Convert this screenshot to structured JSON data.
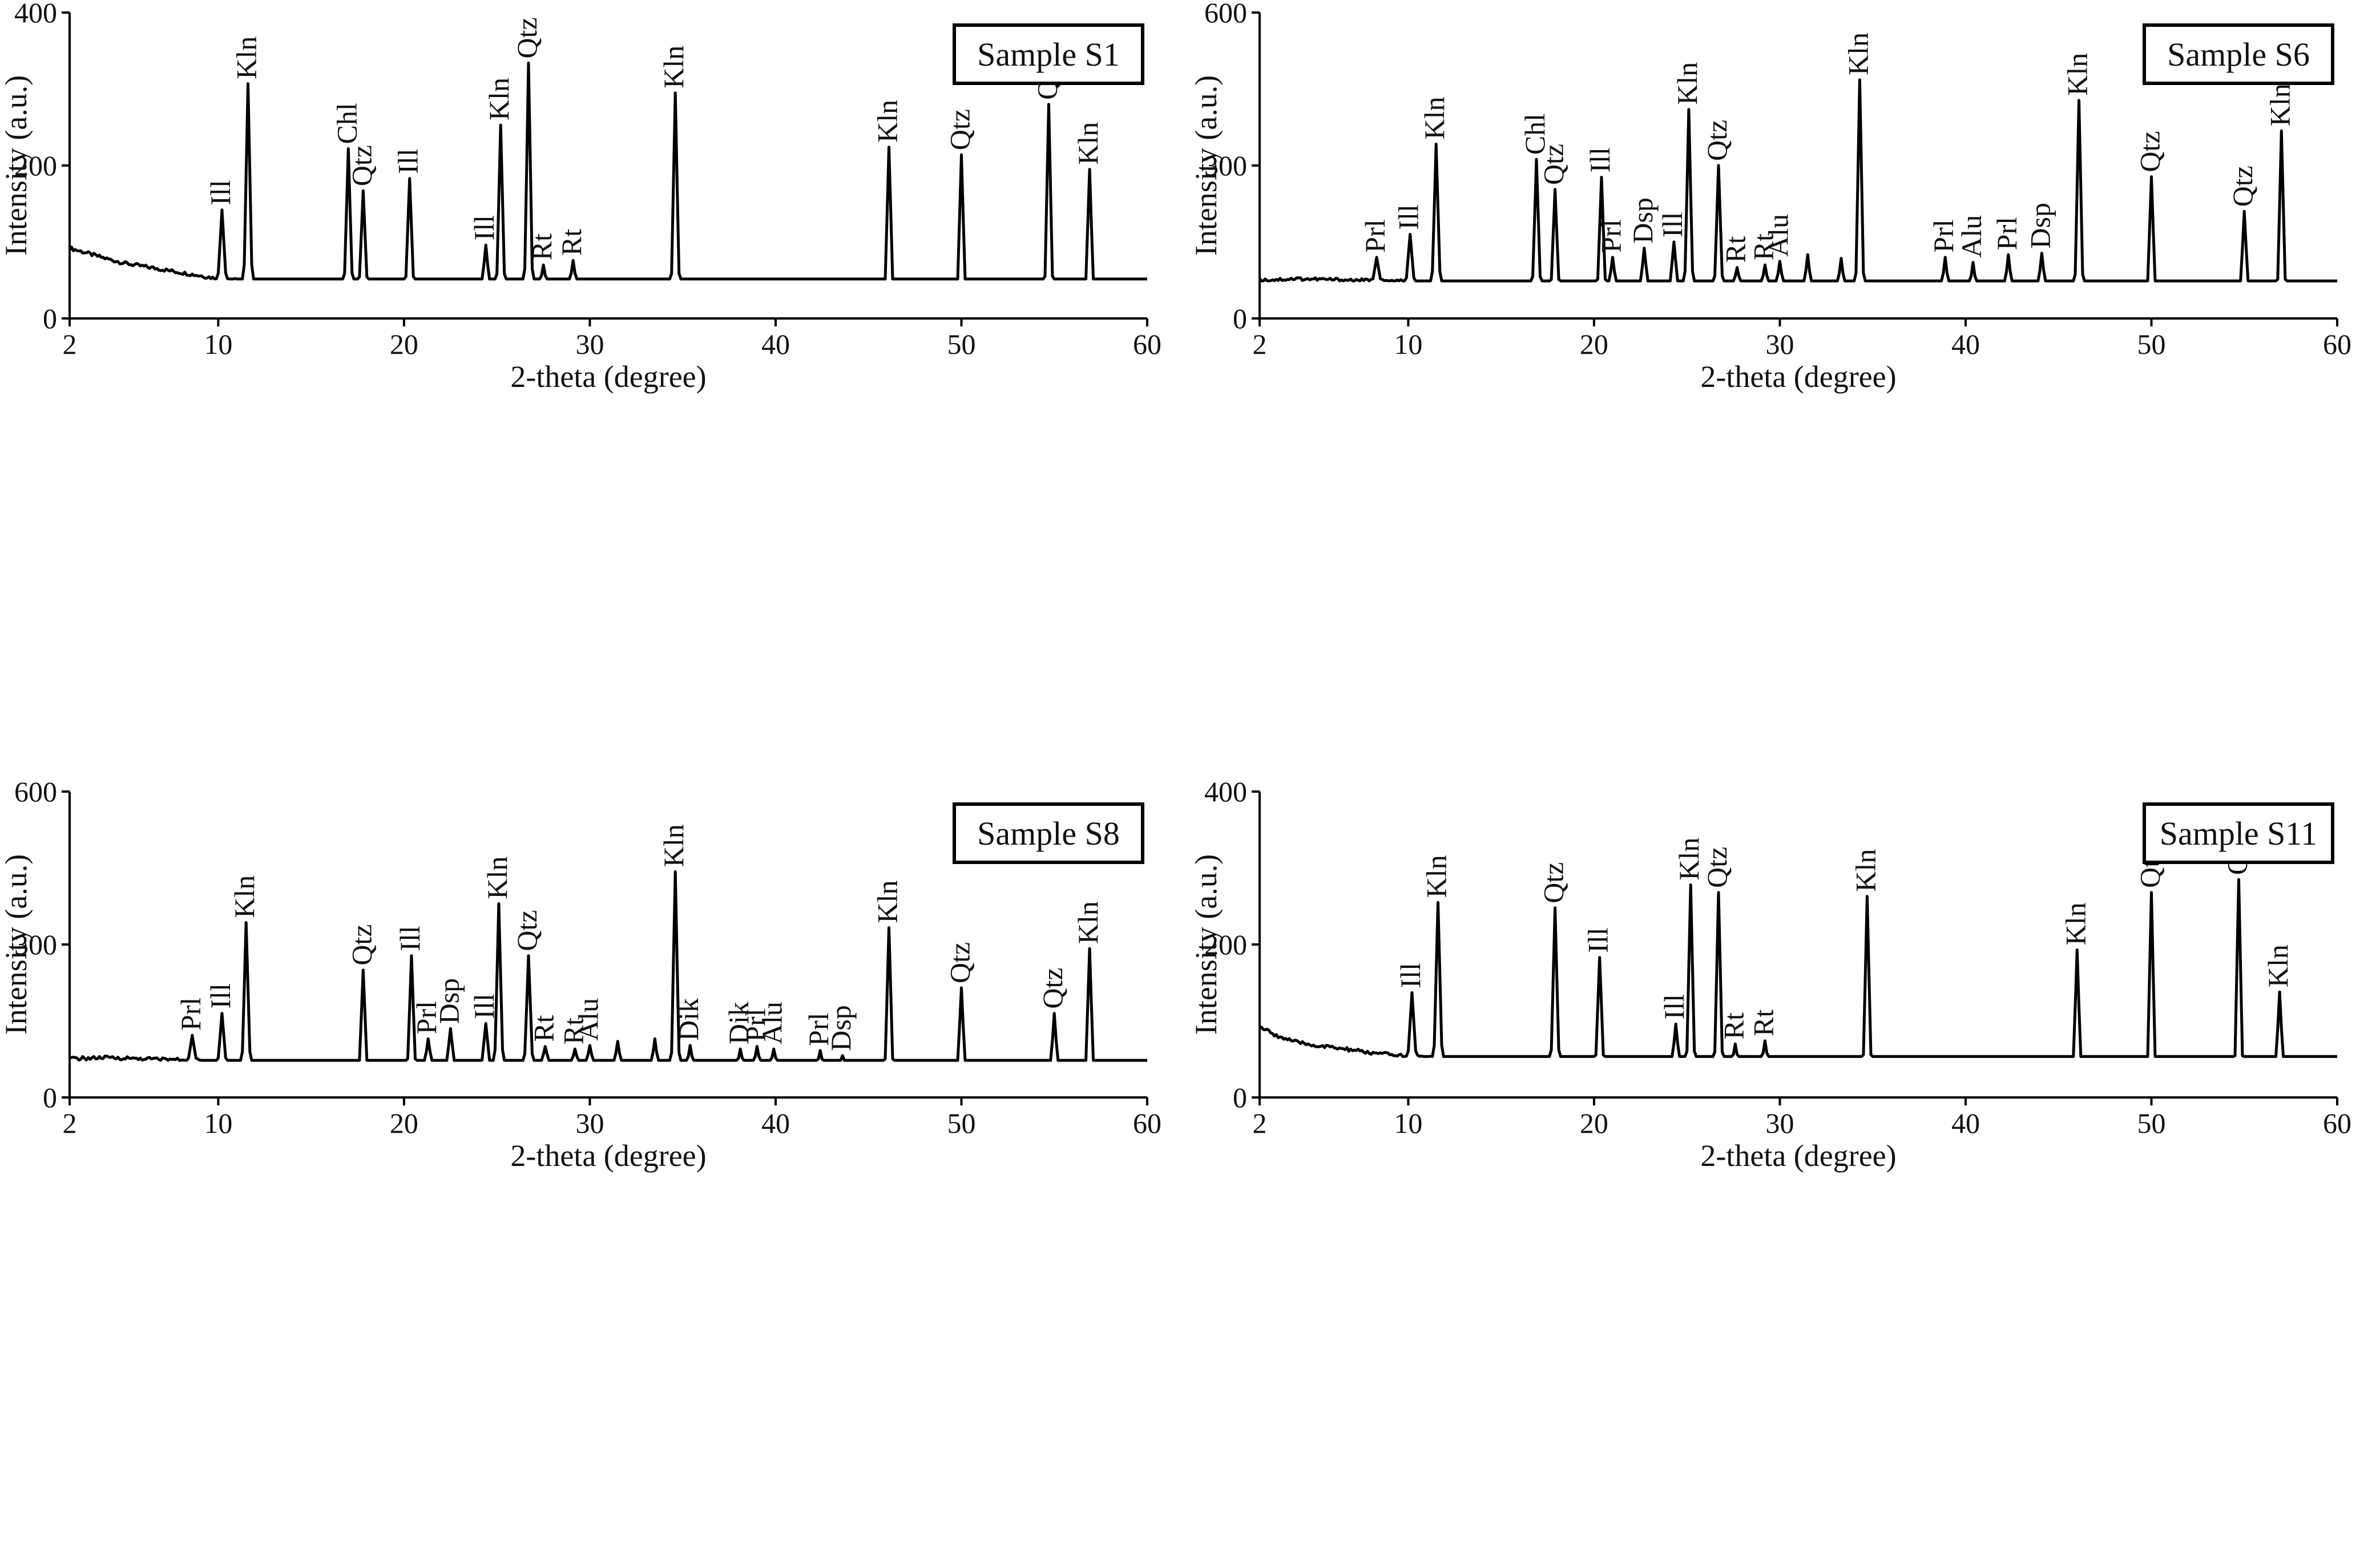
{
  "axis": {
    "xlabel": "2-theta (degree)",
    "ylabel": "Intensity (a.u.)"
  },
  "chart_data": [
    {
      "type": "line",
      "title": "Sample S1",
      "xlabel": "2-theta (degree)",
      "ylabel": "Intensity (a.u.)",
      "xlim": [
        2,
        60
      ],
      "ylim": [
        0,
        400
      ],
      "xticks": [
        2,
        10,
        20,
        30,
        40,
        50,
        60
      ],
      "yticks": [
        0,
        200,
        400
      ],
      "legend": "top-right",
      "baseline": [
        [
          2,
          92
        ],
        [
          3,
          85
        ],
        [
          4,
          78
        ],
        [
          5,
          72
        ],
        [
          6,
          68
        ],
        [
          7,
          64
        ],
        [
          8,
          60
        ],
        [
          9,
          56
        ],
        [
          10,
          52
        ],
        [
          12,
          48
        ],
        [
          14,
          46
        ],
        [
          16,
          44
        ],
        [
          18,
          44
        ],
        [
          20,
          43
        ],
        [
          22,
          42
        ],
        [
          24,
          41
        ],
        [
          26,
          40
        ],
        [
          28,
          40
        ],
        [
          30,
          39
        ],
        [
          32,
          38
        ],
        [
          34,
          37
        ],
        [
          36,
          37
        ],
        [
          38,
          35
        ],
        [
          40,
          34
        ],
        [
          42,
          33
        ],
        [
          43,
          30
        ],
        [
          44,
          34
        ],
        [
          46,
          35
        ],
        [
          48,
          34
        ],
        [
          50,
          34
        ],
        [
          52,
          34
        ],
        [
          54,
          34
        ],
        [
          56,
          35
        ],
        [
          58,
          34
        ],
        [
          60,
          33
        ]
      ],
      "peaks": [
        {
          "x": 10.2,
          "y": 142,
          "label": "Ill"
        },
        {
          "x": 11.6,
          "y": 307,
          "label": "Kln"
        },
        {
          "x": 17.0,
          "y": 222,
          "label": "Chl"
        },
        {
          "x": 17.8,
          "y": 167,
          "label": "Qtz"
        },
        {
          "x": 20.3,
          "y": 183,
          "label": "Ill"
        },
        {
          "x": 24.4,
          "y": 96,
          "label": "Ill"
        },
        {
          "x": 25.2,
          "y": 253,
          "label": "Kln"
        },
        {
          "x": 26.7,
          "y": 334,
          "label": "Qtz"
        },
        {
          "x": 27.5,
          "y": 70,
          "label": "Rt"
        },
        {
          "x": 29.1,
          "y": 76,
          "label": "Rt"
        },
        {
          "x": 34.6,
          "y": 295,
          "label": "Kln"
        },
        {
          "x": 46.1,
          "y": 224,
          "label": "Kln"
        },
        {
          "x": 50.0,
          "y": 214,
          "label": "Qtz"
        },
        {
          "x": 54.7,
          "y": 280,
          "label": "Qtz"
        },
        {
          "x": 56.9,
          "y": 195,
          "label": "Kln"
        }
      ]
    },
    {
      "type": "line",
      "title": "Sample S6",
      "xlabel": "2-theta (degree)",
      "ylabel": "Intensity (a.u.)",
      "xlim": [
        2,
        60
      ],
      "ylim": [
        0,
        600
      ],
      "xticks": [
        2,
        10,
        20,
        30,
        40,
        50,
        60
      ],
      "yticks": [
        0,
        300,
        600
      ],
      "legend": "top-right",
      "baseline": [
        [
          2,
          75
        ],
        [
          4,
          78
        ],
        [
          6,
          76
        ],
        [
          8,
          74
        ],
        [
          10,
          72
        ],
        [
          12,
          68
        ],
        [
          14,
          65
        ],
        [
          16,
          62
        ],
        [
          18,
          60
        ],
        [
          20,
          58
        ],
        [
          22,
          60
        ],
        [
          24,
          62
        ],
        [
          26,
          64
        ],
        [
          28,
          62
        ],
        [
          30,
          58
        ],
        [
          32,
          55
        ],
        [
          34,
          54
        ],
        [
          36,
          54
        ],
        [
          38,
          53
        ],
        [
          40,
          52
        ],
        [
          42,
          53
        ],
        [
          44,
          55
        ],
        [
          46,
          55
        ],
        [
          48,
          54
        ],
        [
          50,
          52
        ],
        [
          52,
          52
        ],
        [
          54,
          56
        ],
        [
          56,
          55
        ],
        [
          58,
          45
        ],
        [
          60,
          42
        ]
      ],
      "peaks": [
        {
          "x": 8.3,
          "y": 120,
          "label": "Prl"
        },
        {
          "x": 10.1,
          "y": 165,
          "label": "Ill"
        },
        {
          "x": 11.5,
          "y": 342,
          "label": "Kln"
        },
        {
          "x": 16.9,
          "y": 312,
          "label": "Chl"
        },
        {
          "x": 17.9,
          "y": 253,
          "label": "Qtz"
        },
        {
          "x": 20.4,
          "y": 277,
          "label": "Ill"
        },
        {
          "x": 21.0,
          "y": 120,
          "label": "Prl"
        },
        {
          "x": 22.7,
          "y": 138,
          "label": "Dsp"
        },
        {
          "x": 24.3,
          "y": 150,
          "label": "Ill"
        },
        {
          "x": 25.1,
          "y": 410,
          "label": "Kln"
        },
        {
          "x": 26.7,
          "y": 300,
          "label": "Qtz"
        },
        {
          "x": 27.7,
          "y": 100,
          "label": "Rt"
        },
        {
          "x": 29.2,
          "y": 105,
          "label": "Rt"
        },
        {
          "x": 30.0,
          "y": 112,
          "label": "Alu"
        },
        {
          "x": 31.5,
          "y": 125,
          "label": ""
        },
        {
          "x": 33.3,
          "y": 118,
          "label": ""
        },
        {
          "x": 34.3,
          "y": 468,
          "label": "Kln"
        },
        {
          "x": 38.9,
          "y": 120,
          "label": "Prl"
        },
        {
          "x": 40.4,
          "y": 110,
          "label": "Alu"
        },
        {
          "x": 42.3,
          "y": 125,
          "label": "Prl"
        },
        {
          "x": 44.1,
          "y": 128,
          "label": "Dsp"
        },
        {
          "x": 46.1,
          "y": 428,
          "label": "Kln"
        },
        {
          "x": 50.0,
          "y": 278,
          "label": "Qtz"
        },
        {
          "x": 55.0,
          "y": 210,
          "label": "Qtz"
        },
        {
          "x": 57.0,
          "y": 368,
          "label": "Kln"
        }
      ]
    },
    {
      "type": "line",
      "title": "Sample S8",
      "xlabel": "2-theta (degree)",
      "ylabel": "Intensity (a.u.)",
      "xlim": [
        2,
        60
      ],
      "ylim": [
        0,
        600
      ],
      "xticks": [
        2,
        10,
        20,
        30,
        40,
        50,
        60
      ],
      "yticks": [
        0,
        300,
        600
      ],
      "legend": "top-right",
      "baseline": [
        [
          2,
          76
        ],
        [
          4,
          78
        ],
        [
          6,
          76
        ],
        [
          8,
          74
        ],
        [
          10,
          70
        ],
        [
          12,
          65
        ],
        [
          14,
          60
        ],
        [
          16,
          58
        ],
        [
          18,
          56
        ],
        [
          20,
          56
        ],
        [
          22,
          62
        ],
        [
          24,
          66
        ],
        [
          26,
          68
        ],
        [
          28,
          66
        ],
        [
          30,
          62
        ],
        [
          32,
          58
        ],
        [
          34,
          55
        ],
        [
          36,
          55
        ],
        [
          38,
          56
        ],
        [
          40,
          58
        ],
        [
          42,
          56
        ],
        [
          44,
          55
        ],
        [
          46,
          52
        ],
        [
          48,
          50
        ],
        [
          50,
          50
        ],
        [
          52,
          49
        ],
        [
          54,
          49
        ],
        [
          56,
          50
        ],
        [
          58,
          48
        ],
        [
          60,
          46
        ]
      ],
      "peaks": [
        {
          "x": 8.6,
          "y": 122,
          "label": "Prl"
        },
        {
          "x": 10.2,
          "y": 165,
          "label": "Ill"
        },
        {
          "x": 11.5,
          "y": 343,
          "label": "Kln"
        },
        {
          "x": 17.8,
          "y": 250,
          "label": "Qtz"
        },
        {
          "x": 20.4,
          "y": 278,
          "label": "Ill"
        },
        {
          "x": 21.3,
          "y": 115,
          "label": "Prl"
        },
        {
          "x": 22.5,
          "y": 135,
          "label": "Dsp"
        },
        {
          "x": 24.4,
          "y": 145,
          "label": "Ill"
        },
        {
          "x": 25.1,
          "y": 380,
          "label": "Kln"
        },
        {
          "x": 26.7,
          "y": 278,
          "label": "Qtz"
        },
        {
          "x": 27.6,
          "y": 100,
          "label": "Rt"
        },
        {
          "x": 29.2,
          "y": 95,
          "label": "Rt"
        },
        {
          "x": 30.0,
          "y": 102,
          "label": "Alu"
        },
        {
          "x": 31.5,
          "y": 110,
          "label": ""
        },
        {
          "x": 33.5,
          "y": 115,
          "label": ""
        },
        {
          "x": 34.6,
          "y": 443,
          "label": "Kln"
        },
        {
          "x": 35.4,
          "y": 102,
          "label": "Dik"
        },
        {
          "x": 38.1,
          "y": 95,
          "label": "Dik"
        },
        {
          "x": 39.0,
          "y": 100,
          "label": "Prl"
        },
        {
          "x": 39.9,
          "y": 95,
          "label": "Alu"
        },
        {
          "x": 42.4,
          "y": 92,
          "label": "Prl"
        },
        {
          "x": 43.6,
          "y": 82,
          "label": "Dsp"
        },
        {
          "x": 46.1,
          "y": 333,
          "label": "Kln"
        },
        {
          "x": 50.0,
          "y": 215,
          "label": "Qtz"
        },
        {
          "x": 55.0,
          "y": 165,
          "label": "Qtz"
        },
        {
          "x": 56.9,
          "y": 292,
          "label": "Kln"
        }
      ]
    },
    {
      "type": "line",
      "title": "Sample S11",
      "xlabel": "2-theta (degree)",
      "ylabel": "Intensity (a.u.)",
      "xlim": [
        2,
        60
      ],
      "ylim": [
        0,
        400
      ],
      "xticks": [
        2,
        10,
        20,
        30,
        40,
        50,
        60
      ],
      "yticks": [
        0,
        200,
        400
      ],
      "legend": "top-right",
      "baseline": [
        [
          2,
          92
        ],
        [
          3,
          80
        ],
        [
          4,
          72
        ],
        [
          5,
          68
        ],
        [
          6,
          65
        ],
        [
          7,
          62
        ],
        [
          8,
          58
        ],
        [
          9,
          56
        ],
        [
          10,
          54
        ],
        [
          12,
          50
        ],
        [
          14,
          48
        ],
        [
          16,
          46
        ],
        [
          18,
          45
        ],
        [
          20,
          44
        ],
        [
          22,
          42
        ],
        [
          24,
          41
        ],
        [
          26,
          40
        ],
        [
          28,
          40
        ],
        [
          30,
          39
        ],
        [
          32,
          38
        ],
        [
          34,
          37
        ],
        [
          36,
          36
        ],
        [
          38,
          35
        ],
        [
          40,
          35
        ],
        [
          42,
          34
        ],
        [
          44,
          33
        ],
        [
          46,
          33
        ],
        [
          48,
          33
        ],
        [
          50,
          33
        ],
        [
          52,
          33
        ],
        [
          54,
          33
        ],
        [
          56,
          34
        ],
        [
          58,
          33
        ],
        [
          60,
          33
        ]
      ],
      "peaks": [
        {
          "x": 10.2,
          "y": 137,
          "label": "Ill"
        },
        {
          "x": 11.6,
          "y": 255,
          "label": "Kln"
        },
        {
          "x": 17.9,
          "y": 248,
          "label": "Qtz"
        },
        {
          "x": 20.3,
          "y": 183,
          "label": "Ill"
        },
        {
          "x": 24.4,
          "y": 96,
          "label": "Ill"
        },
        {
          "x": 25.2,
          "y": 278,
          "label": "Kln"
        },
        {
          "x": 26.7,
          "y": 268,
          "label": "Qtz"
        },
        {
          "x": 27.6,
          "y": 70,
          "label": "Rt"
        },
        {
          "x": 29.2,
          "y": 74,
          "label": "Rt"
        },
        {
          "x": 34.7,
          "y": 263,
          "label": "Kln"
        },
        {
          "x": 46.0,
          "y": 193,
          "label": "Kln"
        },
        {
          "x": 50.0,
          "y": 268,
          "label": "Qtz"
        },
        {
          "x": 54.7,
          "y": 285,
          "label": "Qtz"
        },
        {
          "x": 56.9,
          "y": 138,
          "label": "Kln"
        }
      ]
    }
  ]
}
